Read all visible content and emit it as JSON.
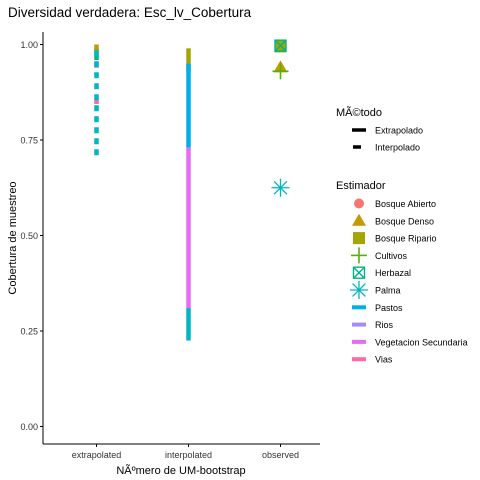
{
  "chart_data": {
    "type": "line",
    "title": "Diversidad verdadera: Esc_lv_Cobertura",
    "xlabel": "NÃºmero de UM-bootstrap",
    "ylabel": "Cobertura de muestreo",
    "categories": [
      "extrapolated",
      "interpolated",
      "observed"
    ],
    "ylim": [
      0,
      1.05
    ],
    "yticks": [
      "0.00",
      "0.25",
      "0.50",
      "0.75",
      "1.00"
    ],
    "grid": false,
    "legend_placement": "right",
    "method_legend": {
      "title": "MÃ©todo",
      "items": [
        {
          "label": "Extrapolado",
          "dash": "solid"
        },
        {
          "label": "Interpolado",
          "dash": "dashed"
        }
      ]
    },
    "estimator_legend": {
      "title": "Estimador",
      "items": [
        {
          "label": "Bosque Abierto",
          "color": "#F8766D",
          "marker": "circle"
        },
        {
          "label": "Bosque Denso",
          "color": "#C49A00",
          "marker": "triangle"
        },
        {
          "label": "Bosque Ripario",
          "color": "#A3A500",
          "marker": "square"
        },
        {
          "label": "Cultivos",
          "color": "#53B400",
          "marker": "plus"
        },
        {
          "label": "Herbazal",
          "color": "#00B386",
          "marker": "boxx"
        },
        {
          "label": "Palma",
          "color": "#00B6C2",
          "marker": "asterisk"
        },
        {
          "label": "Pastos",
          "color": "#00AEEF",
          "marker": "line"
        },
        {
          "label": "Rios",
          "color": "#A58AFF",
          "marker": "line"
        },
        {
          "label": "Vegetacion Secundaria",
          "color": "#E76BF3",
          "marker": "line"
        },
        {
          "label": "Vias",
          "color": "#FF68A1",
          "marker": "line"
        }
      ]
    },
    "segments": [
      {
        "category": "extrapolated",
        "color": "#C49A00",
        "y0": 0.985,
        "y1": 1.0,
        "dash": "dashed"
      },
      {
        "category": "extrapolated",
        "color": "#A3A500",
        "y0": 0.97,
        "y1": 0.99,
        "dash": "dashed"
      },
      {
        "category": "extrapolated",
        "color": "#00B386",
        "y0": 0.95,
        "y1": 0.975,
        "dash": "dashed"
      },
      {
        "category": "extrapolated",
        "color": "#E76BF3",
        "y0": 0.92,
        "y1": 0.955,
        "dash": "dashed"
      },
      {
        "category": "extrapolated",
        "color": "#FF68A1",
        "y0": 0.84,
        "y1": 0.86,
        "dash": "dashed"
      },
      {
        "category": "extrapolated",
        "color": "#00B6C2",
        "y0": 0.71,
        "y1": 0.985,
        "dash": "dashed"
      },
      {
        "category": "interpolated",
        "color": "#A3A500",
        "y0": 0.93,
        "y1": 0.99,
        "dash": "solid"
      },
      {
        "category": "interpolated",
        "color": "#00AEEF",
        "y0": 0.73,
        "y1": 0.95,
        "dash": "solid"
      },
      {
        "category": "interpolated",
        "color": "#E76BF3",
        "y0": 0.31,
        "y1": 0.73,
        "dash": "solid"
      },
      {
        "category": "interpolated",
        "color": "#00B6C2",
        "y0": 0.225,
        "y1": 0.31,
        "dash": "solid"
      }
    ],
    "points": [
      {
        "category": "observed",
        "label": "Bosque Ripario",
        "color": "#A3A500",
        "marker": "square",
        "y": 0.995
      },
      {
        "category": "observed",
        "label": "Herbazal",
        "color": "#00B386",
        "marker": "boxx",
        "y": 0.997
      },
      {
        "category": "observed",
        "label": "Bosque Denso",
        "color": "#C49A00",
        "marker": "triangle",
        "y": 0.94
      },
      {
        "category": "observed",
        "label": "Cultivos",
        "color": "#53B400",
        "marker": "plus",
        "y": 0.93
      },
      {
        "category": "observed",
        "label": "Palma",
        "color": "#00B6C2",
        "marker": "asterisk",
        "y": 0.625
      }
    ]
  }
}
